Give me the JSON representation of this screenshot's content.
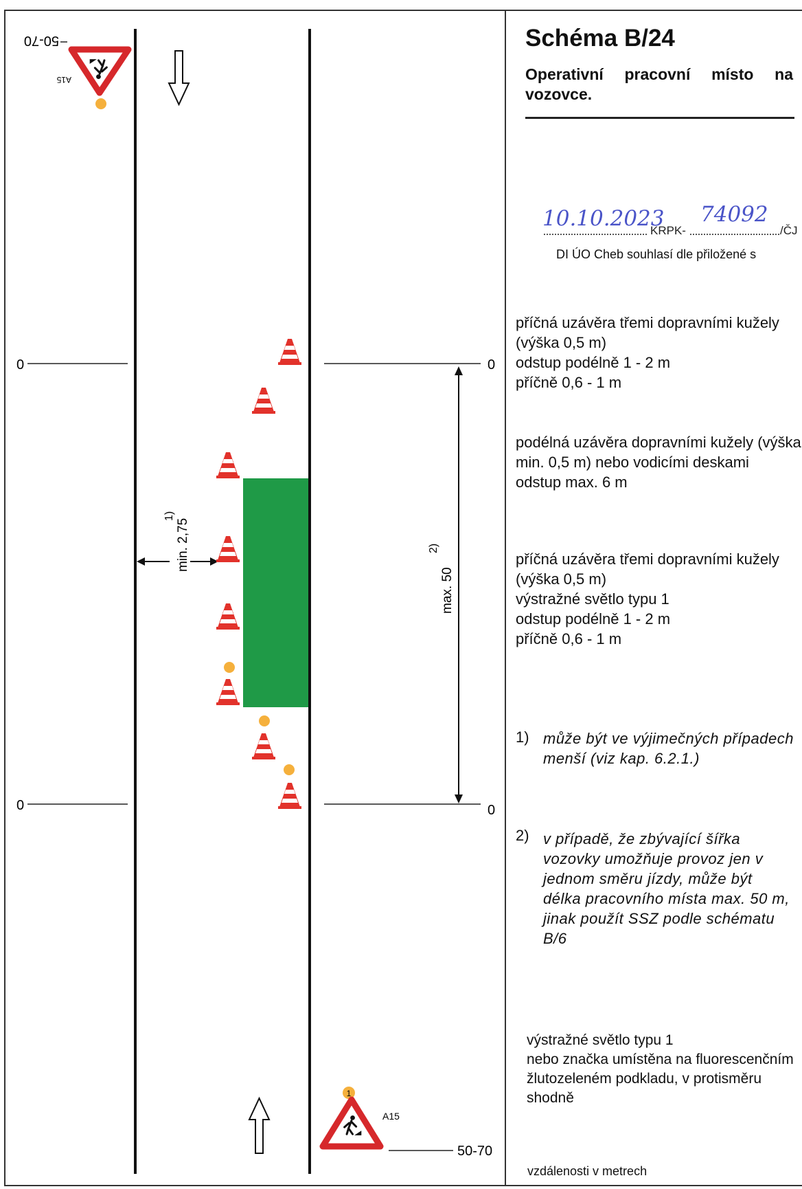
{
  "title": "Schéma B/24",
  "subtitle": "Operativní pracovní místo na vozovce.",
  "stamp": {
    "date": "10.10.2023",
    "krpk_prefix": "KRPK-",
    "number": "74092",
    "suffix": "/ČJ",
    "approval": "DI ÚO Cheb souhlasí dle přiložené s"
  },
  "descriptions": [
    "příčná uzávěra třemi dopravními kužely (výška 0,5 m)\nodstup podélně   1 - 2 m\n        příčně      0,6 - 1 m",
    "podélná uzávěra dopravními kužely (výška min. 0,5 m) nebo vodicími deskami\nodstup max. 6 m",
    "příčná uzávěra třemi dopravními kužely (výška 0,5 m)\nvýstražné světlo typu 1\nodstup podélně   1 - 2 m\n        příčně      0,6 - 1 m"
  ],
  "notes": [
    {
      "num": "1)",
      "text": "může být ve výjimečných případech menší (viz kap. 6.2.1.)"
    },
    {
      "num": "2)",
      "text": "v případě, že zbývající šířka vozovky umožňuje provoz jen v jednom směru jízdy, může být délka pracovního místa max. 50 m, jinak použít SSZ podle schématu B/6"
    }
  ],
  "legend": "výstražné světlo typu 1\nnebo značka umístěna na fluorescenčním žlutozeleném podkladu, v protisměru shodně",
  "units": "vzdálenosti v metrech",
  "diagram": {
    "distance_top": "50-70",
    "distance_bottom": "50-70",
    "zero_left_top": "0",
    "zero_right_top": "0",
    "zero_left_bottom": "0",
    "zero_right_bottom": "0",
    "width_label": "min. 2,75",
    "width_note": "1)",
    "length_label": "max. 50",
    "length_note": "2)",
    "sign_code_top": "A15",
    "sign_code_bottom": "A15",
    "warning_light_number": "1",
    "colors": {
      "work_zone": "#1f9a47",
      "cone": "#e2322b",
      "warning_light": "#f5b03c",
      "sign_border": "#d6282b"
    }
  }
}
